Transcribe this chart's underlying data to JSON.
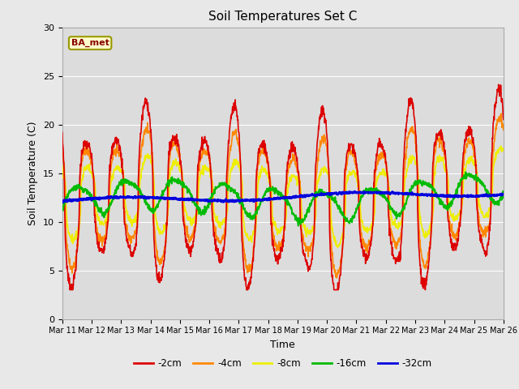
{
  "title": "Soil Temperatures Set C",
  "xlabel": "Time",
  "ylabel": "Soil Temperature (C)",
  "ylim": [
    0,
    30
  ],
  "annotation": "BA_met",
  "legend_labels": [
    "-2cm",
    "-4cm",
    "-8cm",
    "-16cm",
    "-32cm"
  ],
  "legend_colors": [
    "#dd0000",
    "#ff8800",
    "#eeee00",
    "#00bb00",
    "#0000dd"
  ],
  "line_widths": [
    1.2,
    1.2,
    1.2,
    1.5,
    2.0
  ],
  "bg_color": "#e8e8e8",
  "plot_bg_color": "#dcdcdc",
  "tick_labels": [
    "Mar 11",
    "Mar 12",
    "Mar 13",
    "Mar 14",
    "Mar 15",
    "Mar 16",
    "Mar 17",
    "Mar 18",
    "Mar 19",
    "Mar 20",
    "Mar 21",
    "Mar 22",
    "Mar 23",
    "Mar 24",
    "Mar 25",
    "Mar 26"
  ],
  "n_points": 1440,
  "days": 15
}
